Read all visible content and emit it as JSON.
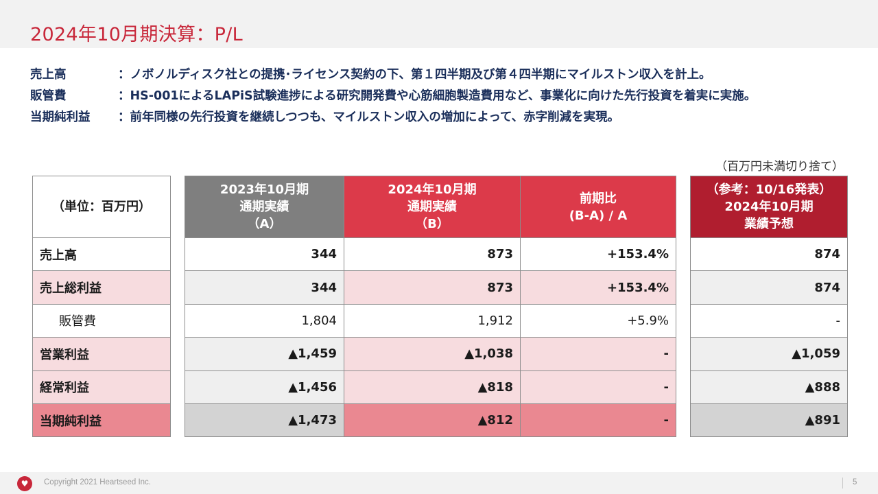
{
  "title": "2024年10月期決算：P/L",
  "summary": [
    {
      "term": "売上高",
      "text": "：ノボノルディスク社との提携･ライセンス契約の下、第１四半期及び第４四半期にマイルストン収入を計上。"
    },
    {
      "term": "販管費",
      "text": "：HS-001によるLAPiS試験進捗による研究開発費や心筋細胞製造費用など、事業化に向けた先行投資を着実に実施。"
    },
    {
      "term": "当期純利益",
      "text": "：前年同様の先行投資を継続しつつも、マイルストン収入の増加によって、赤字削減を実現。"
    }
  ],
  "note": "（百万円未満切り捨て）",
  "table": {
    "unit_label": "（単位：百万円）",
    "col_2023": [
      "2023年10月期",
      "通期実績",
      "（A）"
    ],
    "col_2024": [
      "2024年10月期",
      "通期実績",
      "（B）"
    ],
    "col_diff": [
      "前期比",
      "(B-A) / A"
    ],
    "col_ref": [
      "（参考：10/16発表）",
      "2024年10月期",
      "業績予想"
    ],
    "rows": [
      {
        "label": "売上高",
        "a": "344",
        "b": "873",
        "diff": "+153.4%",
        "ref": "874"
      },
      {
        "label": "売上総利益",
        "a": "344",
        "b": "873",
        "diff": "+153.4%",
        "ref": "874"
      },
      {
        "label": "販管費",
        "a": "1,804",
        "b": "1,912",
        "diff": "+5.9%",
        "ref": "-"
      },
      {
        "label": "営業利益",
        "a": "▲1,459",
        "b": "▲1,038",
        "diff": "-",
        "ref": "▲1,059"
      },
      {
        "label": "経常利益",
        "a": "▲1,456",
        "b": "▲818",
        "diff": "-",
        "ref": "▲888"
      },
      {
        "label": "当期純利益",
        "a": "▲1,473",
        "b": "▲812",
        "diff": "-",
        "ref": "▲891"
      }
    ]
  },
  "footer": {
    "copyright": "Copyright 2021 Heartseed Inc.",
    "page": "5",
    "logo_icon": "heart-icon"
  },
  "colors": {
    "accent": "#c8273a",
    "header_2023": "#7f7f7f",
    "header_2024": "#dc3a4a",
    "header_ref": "#b01e2f",
    "pink_light": "#f7dcdf",
    "pink_strong": "#ea8891"
  }
}
